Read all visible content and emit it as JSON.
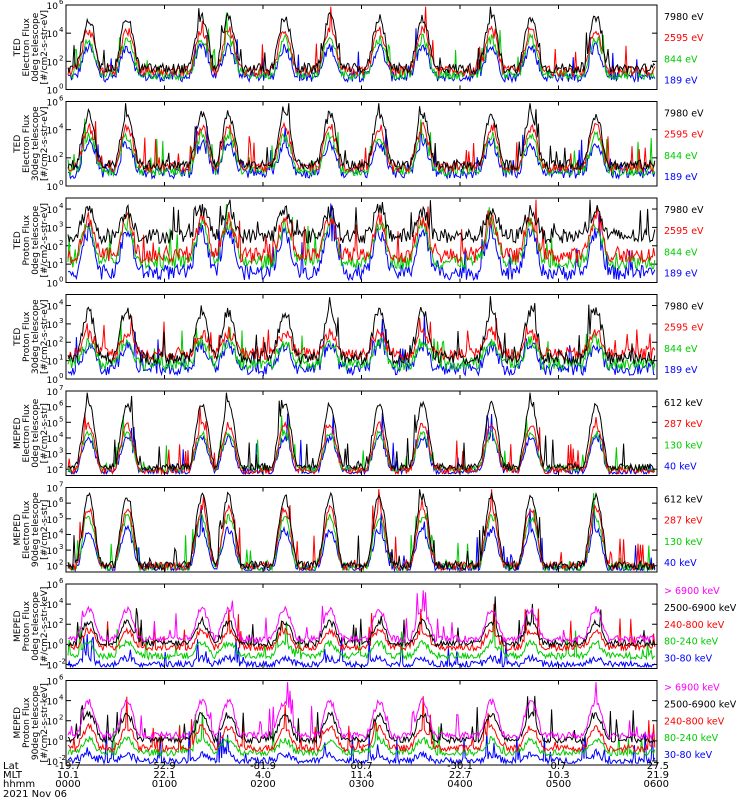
{
  "panels": [
    {
      "id": "ted-electron-0deg",
      "ylabel": [
        "TED",
        "Electron Flux",
        "0deg telescope",
        "[#/cm2-s-str-eV]"
      ],
      "ylabel_scale": 0.8,
      "ticks": [
        {
          "label": "10",
          "exp": "6",
          "value": 6
        },
        {
          "label": "10",
          "exp": "4",
          "value": 4
        },
        {
          "label": "10",
          "exp": "2",
          "value": 2
        },
        {
          "label": "10",
          "exp": "0",
          "value": 0
        }
      ],
      "ylim": [
        0,
        6
      ],
      "legend": [
        {
          "label": "7980 eV",
          "color": "#000000"
        },
        {
          "label": "2595 eV",
          "color": "#ff0000"
        },
        {
          "label": "844 eV",
          "color": "#00cc00"
        },
        {
          "label": "189 eV",
          "color": "#0000ff"
        }
      ],
      "series_profile": "ted-e"
    },
    {
      "id": "ted-electron-30deg",
      "ylabel": [
        "TED",
        "Electron Flux",
        "30deg telescope",
        "[#/cm2-s-str-eV]"
      ],
      "ylabel_scale": 0.8,
      "ticks": [
        {
          "label": "10",
          "exp": "6",
          "value": 6
        },
        {
          "label": "10",
          "exp": "4",
          "value": 4
        },
        {
          "label": "10",
          "exp": "2",
          "value": 2
        },
        {
          "label": "10",
          "exp": "0",
          "value": 0
        }
      ],
      "ylim": [
        0,
        6
      ],
      "legend": [
        {
          "label": "7980 eV",
          "color": "#000000"
        },
        {
          "label": "2595 eV",
          "color": "#ff0000"
        },
        {
          "label": "844 eV",
          "color": "#00cc00"
        },
        {
          "label": "189 eV",
          "color": "#0000ff"
        }
      ],
      "series_profile": "ted-e"
    },
    {
      "id": "ted-proton-0deg",
      "ylabel": [
        "TED",
        "Proton Flux",
        "0deg telescope",
        "[#/cm2-s-str-eV]"
      ],
      "ylabel_scale": 0.8,
      "ticks": [
        {
          "label": "10",
          "exp": "4",
          "value": 4
        },
        {
          "label": "10",
          "exp": "3",
          "value": 3
        },
        {
          "label": "10",
          "exp": "2",
          "value": 2
        },
        {
          "label": "10",
          "exp": "1",
          "value": 1
        },
        {
          "label": "10",
          "exp": "0",
          "value": 0
        }
      ],
      "ylim": [
        0,
        4.6
      ],
      "legend": [
        {
          "label": "7980 eV",
          "color": "#000000"
        },
        {
          "label": "2595 eV",
          "color": "#ff0000"
        },
        {
          "label": "844 eV",
          "color": "#00cc00"
        },
        {
          "label": "189 eV",
          "color": "#0000ff"
        }
      ],
      "series_profile": "ted-p"
    },
    {
      "id": "ted-proton-30deg",
      "ylabel": [
        "TED",
        "Proton Flux",
        "30deg telescope",
        "[#/cm2-s-str-eV]"
      ],
      "ylabel_scale": 0.8,
      "ticks": [
        {
          "label": "10",
          "exp": "4",
          "value": 4
        },
        {
          "label": "10",
          "exp": "3",
          "value": 3
        },
        {
          "label": "10",
          "exp": "2",
          "value": 2
        },
        {
          "label": "10",
          "exp": "1",
          "value": 1
        },
        {
          "label": "10",
          "exp": "0",
          "value": 0
        }
      ],
      "ylim": [
        0,
        4.6
      ],
      "legend": [
        {
          "label": "7980 eV",
          "color": "#000000"
        },
        {
          "label": "2595 eV",
          "color": "#ff0000"
        },
        {
          "label": "844 eV",
          "color": "#00cc00"
        },
        {
          "label": "189 eV",
          "color": "#0000ff"
        }
      ],
      "series_profile": "ted-p2"
    },
    {
      "id": "meped-electron-0deg",
      "ylabel": [
        "MEPED",
        "Electron Flux",
        "0deg telescope",
        "[#/cm2-s-str]"
      ],
      "ylabel_scale": 0.8,
      "ticks": [
        {
          "label": "10",
          "exp": "7",
          "value": 7
        },
        {
          "label": "10",
          "exp": "6",
          "value": 6
        },
        {
          "label": "10",
          "exp": "5",
          "value": 5
        },
        {
          "label": "10",
          "exp": "4",
          "value": 4
        },
        {
          "label": "10",
          "exp": "3",
          "value": 3
        },
        {
          "label": "10",
          "exp": "2",
          "value": 2
        }
      ],
      "ylim": [
        1.6,
        7
      ],
      "legend": [
        {
          "label": "612 keV",
          "color": "#000000"
        },
        {
          "label": "287 keV",
          "color": "#ff0000"
        },
        {
          "label": "130 keV",
          "color": "#00cc00"
        },
        {
          "label": "40 keV",
          "color": "#0000ff"
        }
      ],
      "series_profile": "mep-e0"
    },
    {
      "id": "meped-electron-90deg",
      "ylabel": [
        "MEPED",
        "Electron Flux",
        "90deg telescope",
        "[#/cm2-s-str]"
      ],
      "ylabel_scale": 0.8,
      "ticks": [
        {
          "label": "10",
          "exp": "7",
          "value": 7
        },
        {
          "label": "10",
          "exp": "6",
          "value": 6
        },
        {
          "label": "10",
          "exp": "5",
          "value": 5
        },
        {
          "label": "10",
          "exp": "4",
          "value": 4
        },
        {
          "label": "10",
          "exp": "3",
          "value": 3
        },
        {
          "label": "10",
          "exp": "2",
          "value": 2
        }
      ],
      "ylim": [
        1.6,
        7
      ],
      "legend": [
        {
          "label": "612 keV",
          "color": "#000000"
        },
        {
          "label": "287 keV",
          "color": "#ff0000"
        },
        {
          "label": "130 keV",
          "color": "#00cc00"
        },
        {
          "label": "40 keV",
          "color": "#0000ff"
        }
      ],
      "series_profile": "mep-e90"
    },
    {
      "id": "meped-proton-0deg",
      "ylabel": [
        "MEPED",
        "Proton Flux",
        "0deg telescope",
        "[#/cm2-s-str-keV]"
      ],
      "ylabel_scale": 0.8,
      "ticks": [
        {
          "label": "10",
          "exp": "6",
          "value": 6
        },
        {
          "label": "10",
          "exp": "4",
          "value": 4
        },
        {
          "label": "10",
          "exp": "2",
          "value": 2
        },
        {
          "label": "10",
          "exp": "0",
          "value": 0
        },
        {
          "label": "10",
          "exp": "-2",
          "value": -2
        }
      ],
      "ylim": [
        -2.4,
        6
      ],
      "legend": [
        {
          "label": "> 6900 keV",
          "color": "#ff00ff"
        },
        {
          "label": "2500-6900 keV",
          "color": "#000000"
        },
        {
          "label": "240-800 keV",
          "color": "#ff0000"
        },
        {
          "label": "80-240 keV",
          "color": "#00cc00"
        },
        {
          "label": "30-80 keV",
          "color": "#0000ff"
        }
      ],
      "series_profile": "mep-p0"
    },
    {
      "id": "meped-proton-90deg",
      "ylabel": [
        "MEPED",
        "Proton Flux",
        "90deg telescope",
        "[#/cm2-s-str-keV]"
      ],
      "ylabel_scale": 0.8,
      "ticks": [
        {
          "label": "10",
          "exp": "6",
          "value": 6
        },
        {
          "label": "10",
          "exp": "4",
          "value": 4
        },
        {
          "label": "10",
          "exp": "2",
          "value": 2
        },
        {
          "label": "10",
          "exp": "0",
          "value": 0
        },
        {
          "label": "10",
          "exp": "-2",
          "value": -2
        }
      ],
      "ylim": [
        -2.4,
        6
      ],
      "legend": [
        {
          "label": "> 6900 keV",
          "color": "#ff00ff"
        },
        {
          "label": "2500-6900 keV",
          "color": "#000000"
        },
        {
          "label": "240-800 keV",
          "color": "#ff0000"
        },
        {
          "label": "80-240 keV",
          "color": "#00cc00"
        },
        {
          "label": "30-80 keV",
          "color": "#0000ff"
        }
      ],
      "series_profile": "mep-p90"
    }
  ],
  "x_axis": {
    "row_labels": [
      "Lat",
      "MLT",
      "hhmm"
    ],
    "ticks": [
      {
        "lat": "-19.7",
        "mlt": "10.1",
        "hhmm": "0000"
      },
      {
        "lat": "52.9",
        "mlt": "22.1",
        "hhmm": "0100"
      },
      {
        "lat": "-81.9",
        "mlt": "4.0",
        "hhmm": "0200"
      },
      {
        "lat": "60.7",
        "mlt": "11.4",
        "hhmm": "0300"
      },
      {
        "lat": "-30.1",
        "mlt": "22.7",
        "hhmm": "0400"
      },
      {
        "lat": "0.7",
        "mlt": "10.3",
        "hhmm": "0500"
      },
      {
        "lat": "27.5",
        "mlt": "21.9",
        "hhmm": "0600"
      }
    ],
    "date": "2021 Nov 06"
  },
  "chart_data": {
    "type": "line",
    "y_scale": "log",
    "x_range_hhmm": [
      "0000",
      "0600"
    ],
    "date": "2021 Nov 06",
    "panels": [
      "TED Electron Flux 0deg telescope [#/cm2-s-str-eV]",
      "TED Electron Flux 30deg telescope [#/cm2-s-str-eV]",
      "TED Proton Flux 0deg telescope [#/cm2-s-str-eV]",
      "TED Proton Flux 30deg telescope [#/cm2-s-str-eV]",
      "MEPED Electron Flux 0deg telescope [#/cm2-s-str]",
      "MEPED Electron Flux 90deg telescope [#/cm2-s-str]",
      "MEPED Proton Flux 0deg telescope [#/cm2-s-str-keV]",
      "MEPED Proton Flux 90deg telescope [#/cm2-s-str-keV]"
    ],
    "bursts_hours": [
      0.23,
      0.62,
      1.38,
      1.65,
      2.22,
      2.68,
      3.18,
      3.62,
      4.32,
      4.72,
      5.38
    ]
  }
}
